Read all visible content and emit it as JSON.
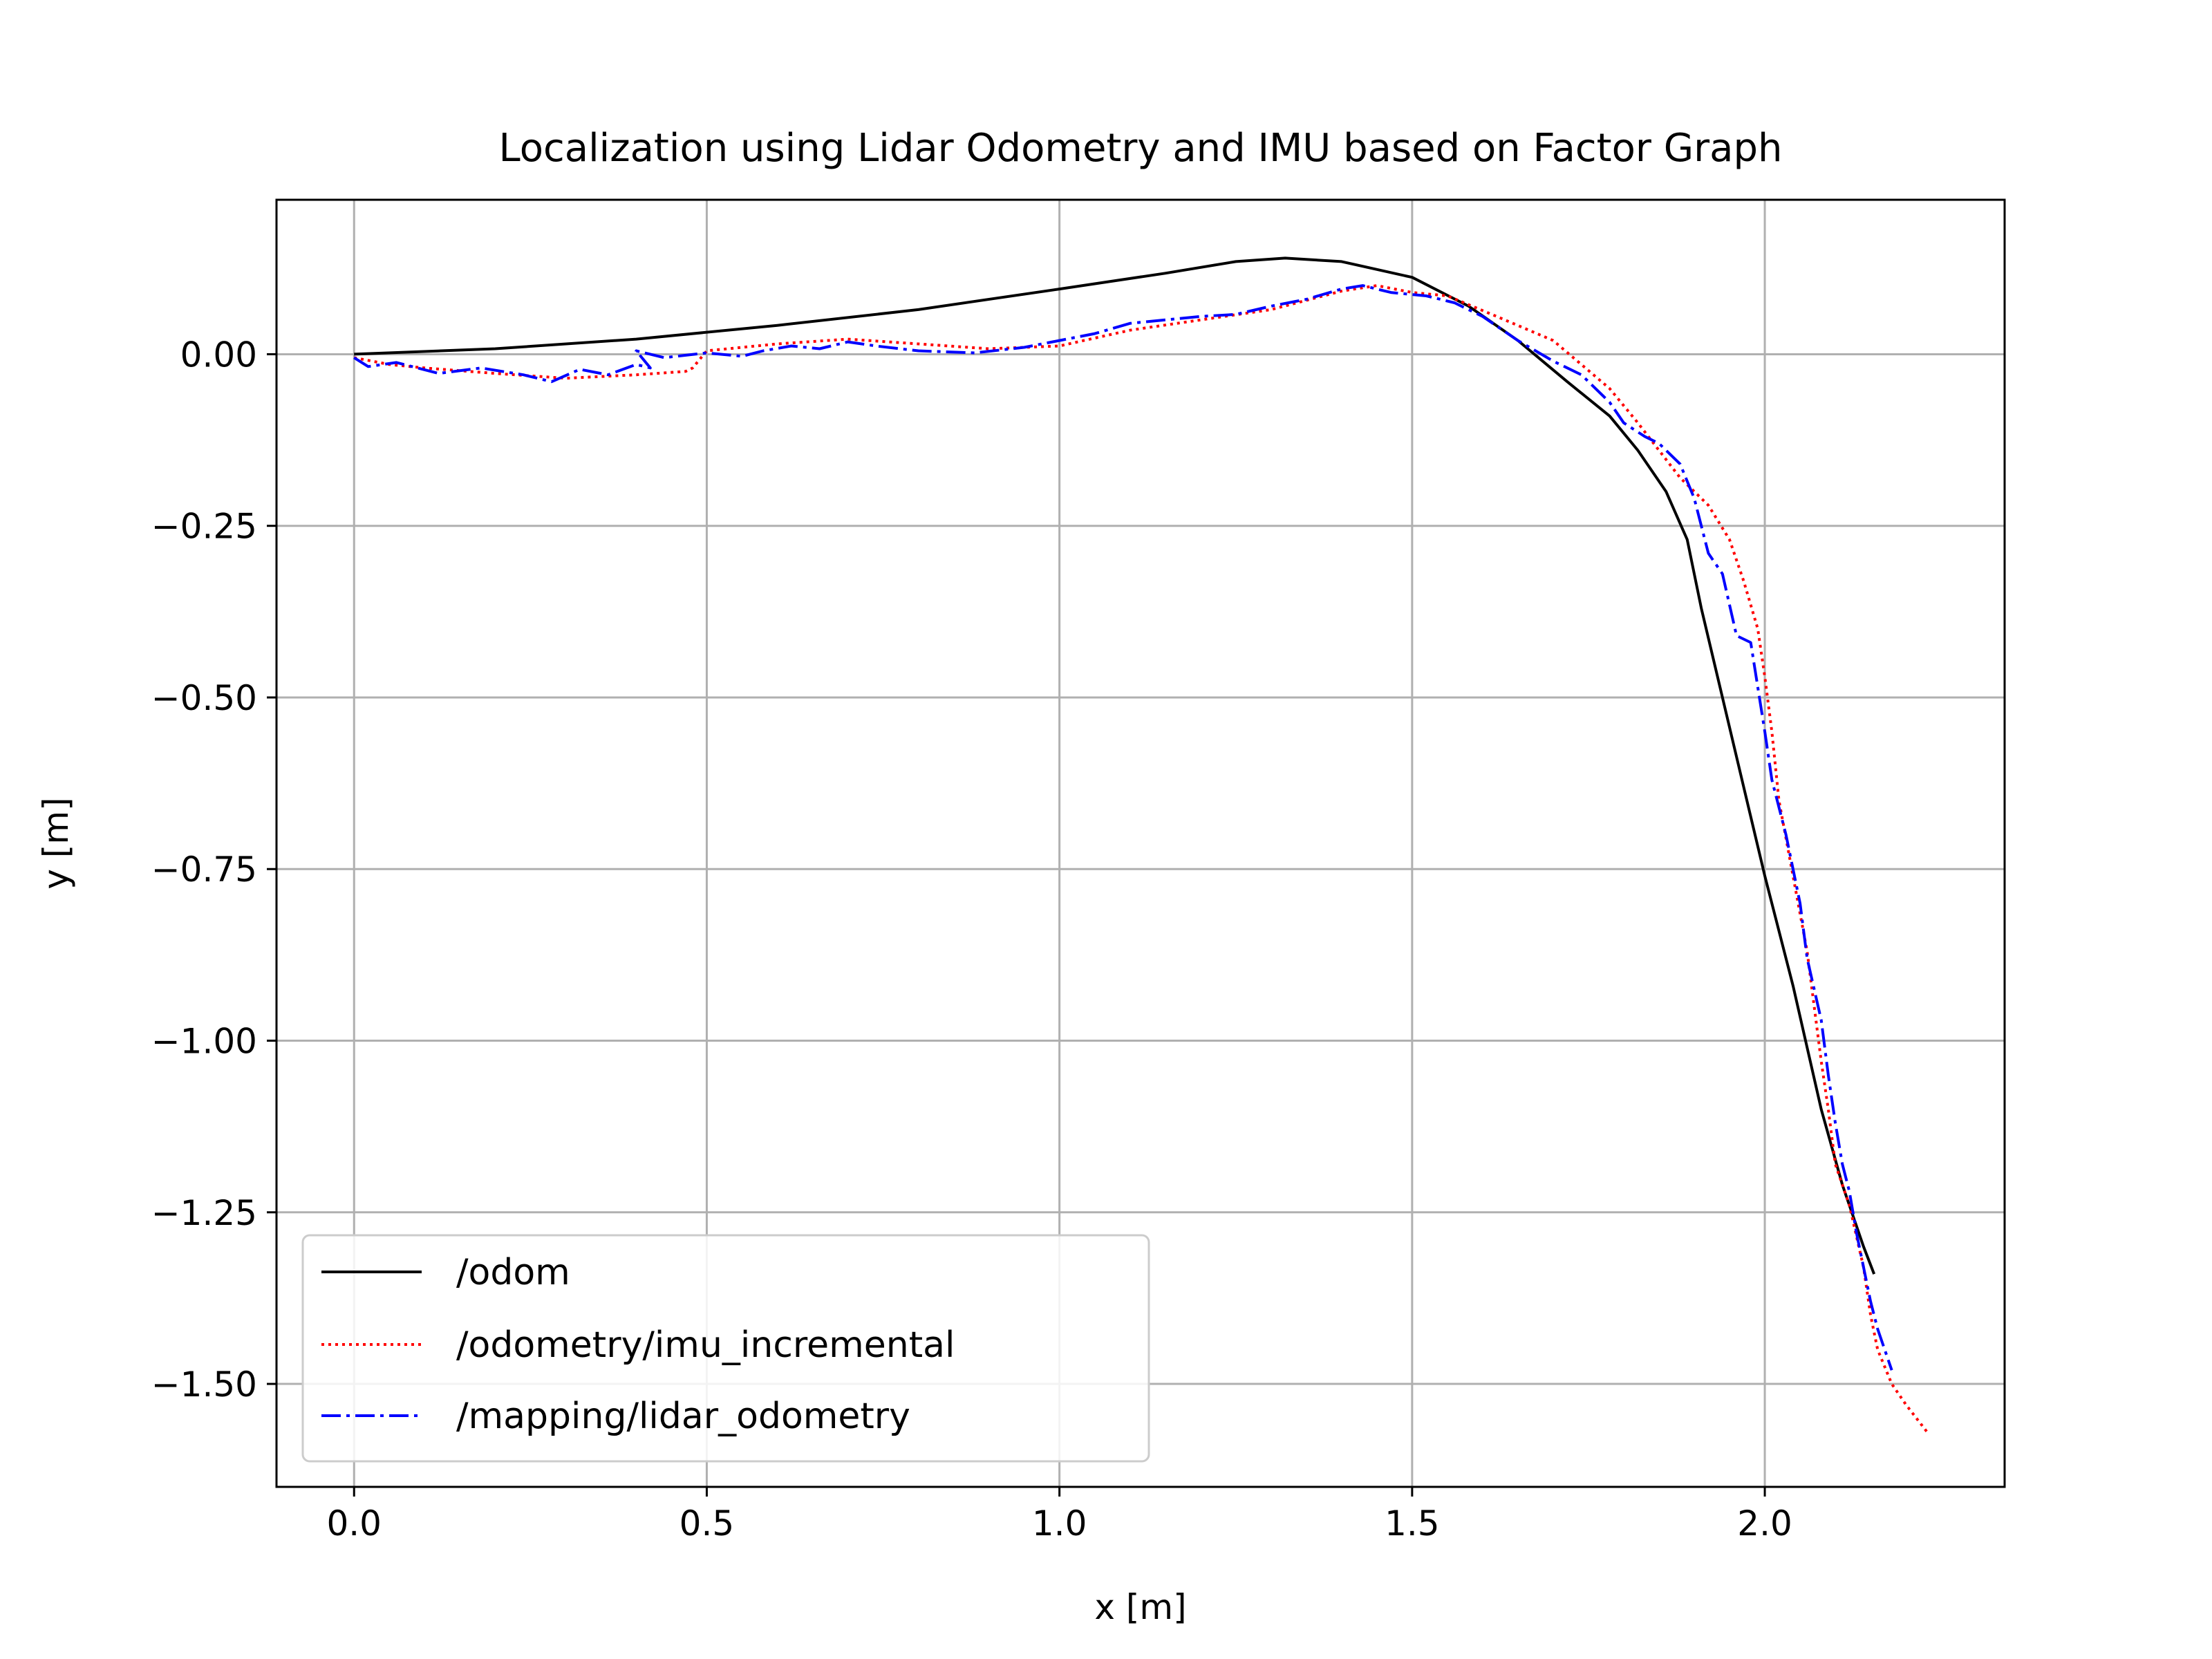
{
  "chart_data": {
    "type": "line",
    "title": "Localization using Lidar Odometry and IMU based on Factor Graph",
    "xlabel": "x [m]",
    "ylabel": "y [m]",
    "xlim": [
      -0.11,
      2.34
    ],
    "ylim": [
      -1.65,
      0.225
    ],
    "xticks": [
      0.0,
      0.5,
      1.0,
      1.5,
      2.0
    ],
    "xtick_labels": [
      "0.0",
      "0.5",
      "1.0",
      "1.5",
      "2.0"
    ],
    "yticks": [
      0.0,
      -0.25,
      -0.5,
      -0.75,
      -1.0,
      -1.25,
      -1.5
    ],
    "ytick_labels": [
      "0.00",
      "−0.25",
      "−0.50",
      "−0.75",
      "−1.00",
      "−1.25",
      "−1.50"
    ],
    "grid": true,
    "legend_position": "lower-left",
    "series": [
      {
        "name": "/odom",
        "color": "#000000",
        "style": "solid",
        "points": [
          [
            0.0,
            0.0
          ],
          [
            0.2,
            0.008
          ],
          [
            0.4,
            0.022
          ],
          [
            0.6,
            0.042
          ],
          [
            0.8,
            0.065
          ],
          [
            1.0,
            0.095
          ],
          [
            1.15,
            0.118
          ],
          [
            1.25,
            0.135
          ],
          [
            1.32,
            0.14
          ],
          [
            1.4,
            0.135
          ],
          [
            1.5,
            0.112
          ],
          [
            1.58,
            0.07
          ],
          [
            1.65,
            0.02
          ],
          [
            1.72,
            -0.04
          ],
          [
            1.78,
            -0.09
          ],
          [
            1.82,
            -0.14
          ],
          [
            1.86,
            -0.2
          ],
          [
            1.89,
            -0.27
          ],
          [
            1.91,
            -0.37
          ],
          [
            1.94,
            -0.5
          ],
          [
            1.97,
            -0.63
          ],
          [
            2.0,
            -0.76
          ],
          [
            2.04,
            -0.92
          ],
          [
            2.08,
            -1.1
          ],
          [
            2.11,
            -1.21
          ],
          [
            2.14,
            -1.3
          ],
          [
            2.155,
            -1.34
          ]
        ]
      },
      {
        "name": "/odometry/imu_incremental",
        "color": "#ff0000",
        "style": "dotted",
        "points": [
          [
            0.0,
            -0.005
          ],
          [
            0.05,
            -0.015
          ],
          [
            0.1,
            -0.02
          ],
          [
            0.2,
            -0.028
          ],
          [
            0.3,
            -0.035
          ],
          [
            0.4,
            -0.03
          ],
          [
            0.47,
            -0.025
          ],
          [
            0.48,
            -0.02
          ],
          [
            0.5,
            0.005
          ],
          [
            0.6,
            0.015
          ],
          [
            0.7,
            0.022
          ],
          [
            0.8,
            0.015
          ],
          [
            0.9,
            0.008
          ],
          [
            1.0,
            0.012
          ],
          [
            1.1,
            0.035
          ],
          [
            1.2,
            0.05
          ],
          [
            1.3,
            0.065
          ],
          [
            1.4,
            0.092
          ],
          [
            1.45,
            0.1
          ],
          [
            1.5,
            0.09
          ],
          [
            1.55,
            0.085
          ],
          [
            1.62,
            0.055
          ],
          [
            1.7,
            0.02
          ],
          [
            1.78,
            -0.05
          ],
          [
            1.82,
            -0.1
          ],
          [
            1.85,
            -0.14
          ],
          [
            1.88,
            -0.18
          ],
          [
            1.92,
            -0.22
          ],
          [
            1.95,
            -0.27
          ],
          [
            1.97,
            -0.33
          ],
          [
            1.99,
            -0.4
          ],
          [
            2.0,
            -0.47
          ],
          [
            2.01,
            -0.55
          ],
          [
            2.02,
            -0.65
          ],
          [
            2.04,
            -0.76
          ],
          [
            2.06,
            -0.87
          ],
          [
            2.07,
            -0.95
          ],
          [
            2.08,
            -1.03
          ],
          [
            2.09,
            -1.1
          ],
          [
            2.1,
            -1.18
          ],
          [
            2.12,
            -1.24
          ],
          [
            2.14,
            -1.33
          ],
          [
            2.15,
            -1.4
          ],
          [
            2.16,
            -1.45
          ],
          [
            2.18,
            -1.5
          ],
          [
            2.2,
            -1.53
          ],
          [
            2.23,
            -1.57
          ]
        ]
      },
      {
        "name": "/mapping/lidar_odometry",
        "color": "#0000ff",
        "style": "dashdot",
        "points": [
          [
            0.0,
            -0.005
          ],
          [
            0.02,
            -0.018
          ],
          [
            0.06,
            -0.012
          ],
          [
            0.12,
            -0.028
          ],
          [
            0.18,
            -0.02
          ],
          [
            0.24,
            -0.03
          ],
          [
            0.28,
            -0.04
          ],
          [
            0.32,
            -0.022
          ],
          [
            0.36,
            -0.03
          ],
          [
            0.4,
            -0.015
          ],
          [
            0.42,
            -0.02
          ],
          [
            0.4,
            0.005
          ],
          [
            0.44,
            -0.005
          ],
          [
            0.5,
            0.002
          ],
          [
            0.55,
            -0.003
          ],
          [
            0.58,
            0.005
          ],
          [
            0.62,
            0.012
          ],
          [
            0.66,
            0.008
          ],
          [
            0.7,
            0.018
          ],
          [
            0.74,
            0.012
          ],
          [
            0.8,
            0.005
          ],
          [
            0.88,
            0.002
          ],
          [
            0.95,
            0.01
          ],
          [
            1.0,
            0.02
          ],
          [
            1.05,
            0.03
          ],
          [
            1.1,
            0.045
          ],
          [
            1.15,
            0.05
          ],
          [
            1.2,
            0.055
          ],
          [
            1.25,
            0.058
          ],
          [
            1.3,
            0.07
          ],
          [
            1.35,
            0.08
          ],
          [
            1.4,
            0.095
          ],
          [
            1.43,
            0.1
          ],
          [
            1.47,
            0.09
          ],
          [
            1.52,
            0.085
          ],
          [
            1.56,
            0.075
          ],
          [
            1.6,
            0.055
          ],
          [
            1.65,
            0.02
          ],
          [
            1.7,
            -0.01
          ],
          [
            1.74,
            -0.03
          ],
          [
            1.78,
            -0.07
          ],
          [
            1.8,
            -0.1
          ],
          [
            1.83,
            -0.12
          ],
          [
            1.85,
            -0.13
          ],
          [
            1.88,
            -0.16
          ],
          [
            1.9,
            -0.21
          ],
          [
            1.92,
            -0.29
          ],
          [
            1.94,
            -0.32
          ],
          [
            1.96,
            -0.41
          ],
          [
            1.98,
            -0.42
          ],
          [
            2.0,
            -0.55
          ],
          [
            2.01,
            -0.62
          ],
          [
            2.03,
            -0.7
          ],
          [
            2.05,
            -0.8
          ],
          [
            2.06,
            -0.88
          ],
          [
            2.08,
            -0.97
          ],
          [
            2.09,
            -1.05
          ],
          [
            2.1,
            -1.12
          ],
          [
            2.11,
            -1.18
          ],
          [
            2.12,
            -1.22
          ],
          [
            2.13,
            -1.28
          ],
          [
            2.14,
            -1.33
          ],
          [
            2.15,
            -1.38
          ],
          [
            2.16,
            -1.42
          ],
          [
            2.17,
            -1.45
          ],
          [
            2.18,
            -1.48
          ]
        ]
      }
    ]
  }
}
